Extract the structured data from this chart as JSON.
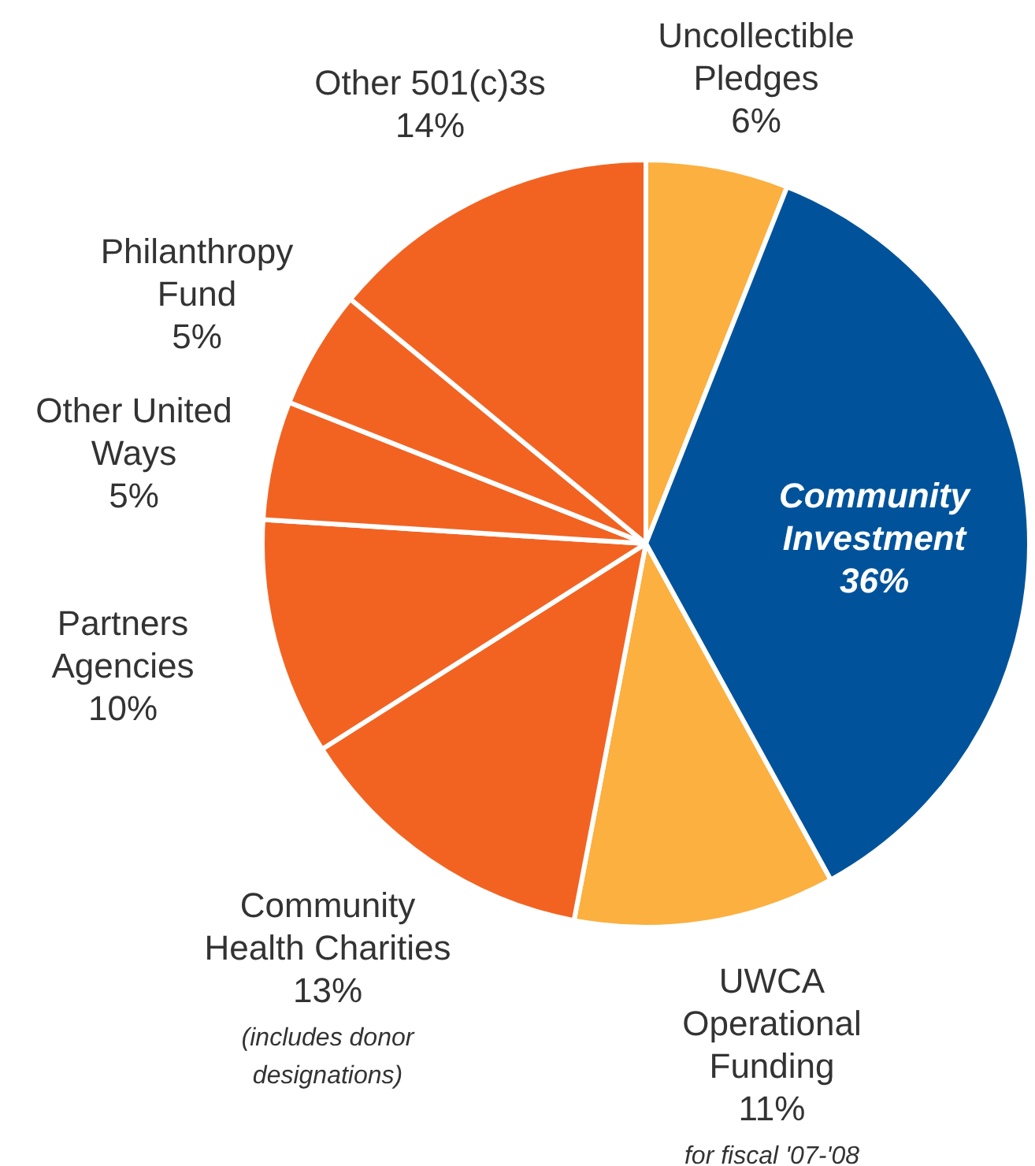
{
  "chart_data": {
    "type": "pie",
    "categories": [
      "Uncollectible Pledges",
      "Community Investment",
      "UWCA Operational Funding",
      "Community Health Charities",
      "Partners Agencies",
      "Other United Ways",
      "Philanthropy Fund",
      "Other 501(c)3s"
    ],
    "values": [
      6,
      36,
      11,
      13,
      10,
      5,
      5,
      14
    ],
    "colors": [
      "#fbb040",
      "#00539b",
      "#fbb040",
      "#f26322",
      "#f26322",
      "#f26322",
      "#f26322",
      "#f26322"
    ],
    "value_labels": [
      "6%",
      "36%",
      "11%",
      "13%",
      "10%",
      "5%",
      "5%",
      "14%"
    ],
    "annotations": [
      "(includes donor designations)",
      "for fiscal '07-'08"
    ],
    "legend": false
  }
}
